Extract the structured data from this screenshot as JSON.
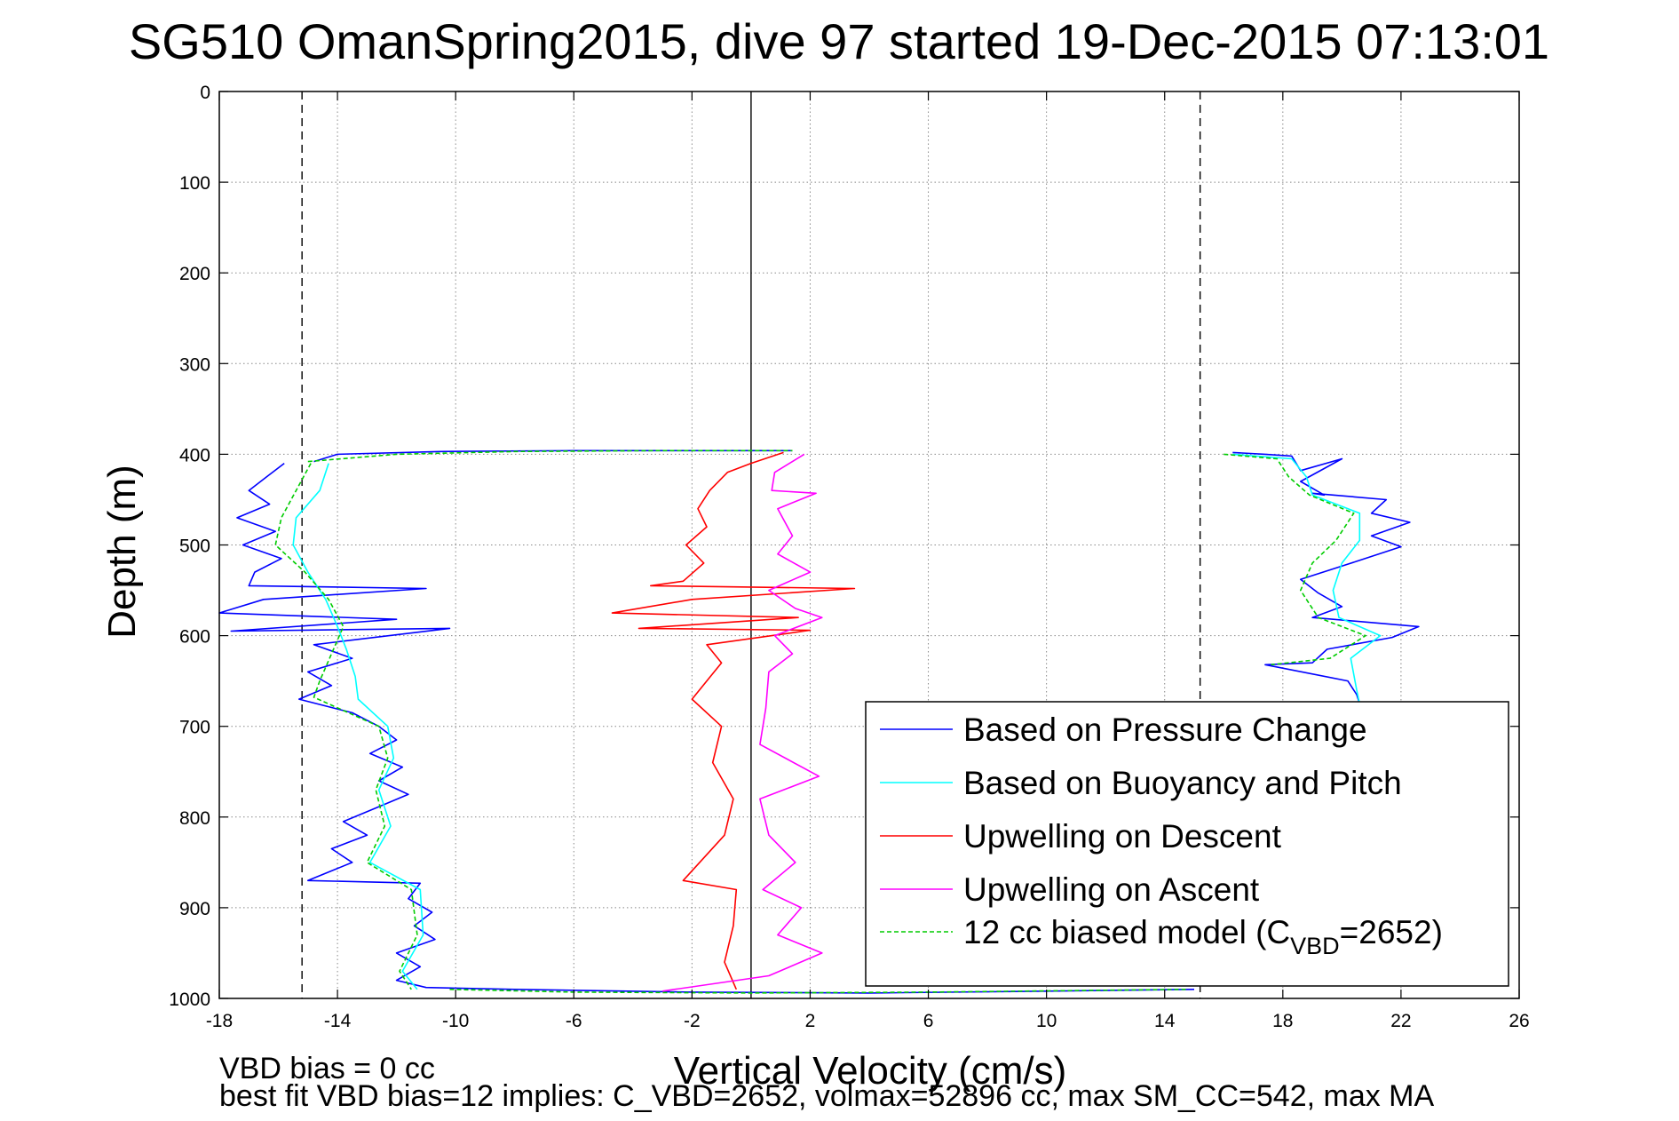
{
  "chart_data": {
    "type": "line",
    "title": "SG510 OmanSpring2015, dive 97 started 19-Dec-2015 07:13:01",
    "xlabel": "Vertical Velocity (cm/s)",
    "ylabel": "Depth (m)",
    "xlim": [
      -18,
      26
    ],
    "ylim": [
      0,
      1000
    ],
    "y_reversed": true,
    "grid": true,
    "xticks": [
      "-18",
      "-14",
      "-10",
      "-6",
      "-2",
      "2",
      "6",
      "10",
      "14",
      "18",
      "22",
      "26"
    ],
    "yticks": [
      "0",
      "100",
      "200",
      "300",
      "400",
      "500",
      "600",
      "700",
      "800",
      "900",
      "1000"
    ],
    "reference_lines": [
      {
        "x": -15.2,
        "style": "dashed"
      },
      {
        "x": 0,
        "style": "solid"
      },
      {
        "x": 15.2,
        "style": "dashed"
      }
    ],
    "series": [
      {
        "name": "Based on Pressure Change",
        "color": "#0000ff",
        "segments": [
          {
            "points": [
              [
                -15.8,
                410
              ],
              [
                -16.4,
                425
              ],
              [
                -17.0,
                440
              ],
              [
                -16.3,
                455
              ],
              [
                -17.4,
                470
              ],
              [
                -16.1,
                485
              ],
              [
                -17.2,
                500
              ],
              [
                -15.9,
                515
              ],
              [
                -16.8,
                530
              ],
              [
                -17.0,
                545
              ],
              [
                -11.0,
                548
              ],
              [
                -16.5,
                560
              ],
              [
                -18.0,
                575
              ],
              [
                -12.0,
                582
              ],
              [
                -17.6,
                595
              ],
              [
                -10.2,
                592
              ],
              [
                -14.8,
                610
              ],
              [
                -13.5,
                625
              ],
              [
                -15.0,
                640
              ],
              [
                -14.2,
                655
              ],
              [
                -15.3,
                670
              ],
              [
                -13.5,
                685
              ],
              [
                -12.6,
                700
              ],
              [
                -12.0,
                715
              ],
              [
                -12.9,
                730
              ],
              [
                -11.8,
                745
              ],
              [
                -12.6,
                760
              ],
              [
                -11.6,
                775
              ],
              [
                -12.7,
                790
              ],
              [
                -13.8,
                805
              ],
              [
                -13.0,
                820
              ],
              [
                -14.2,
                835
              ],
              [
                -13.5,
                850
              ],
              [
                -15.0,
                870
              ],
              [
                -11.2,
                873
              ],
              [
                -11.6,
                890
              ],
              [
                -10.8,
                905
              ],
              [
                -11.4,
                920
              ],
              [
                -10.7,
                935
              ],
              [
                -12.0,
                950
              ],
              [
                -11.2,
                965
              ],
              [
                -12.0,
                980
              ],
              [
                -11.0,
                988
              ],
              [
                -8.0,
                990
              ],
              [
                -2.0,
                993
              ],
              [
                4.0,
                994
              ],
              [
                10.0,
                992
              ],
              [
                15.0,
                990
              ]
            ]
          },
          {
            "points": [
              [
                16.3,
                398
              ],
              [
                17.4,
                400
              ],
              [
                18.3,
                402
              ],
              [
                18.6,
                418
              ],
              [
                20.0,
                405
              ],
              [
                18.6,
                430
              ],
              [
                19.4,
                445
              ],
              [
                19.0,
                443
              ],
              [
                21.5,
                450
              ],
              [
                21.0,
                465
              ],
              [
                22.3,
                475
              ],
              [
                21.0,
                490
              ],
              [
                22.0,
                502
              ],
              [
                20.5,
                518
              ],
              [
                18.6,
                538
              ],
              [
                19.2,
                553
              ],
              [
                20.0,
                568
              ],
              [
                19.0,
                580
              ],
              [
                22.6,
                590
              ],
              [
                21.7,
                602
              ],
              [
                19.5,
                615
              ],
              [
                19.0,
                630
              ],
              [
                17.4,
                632
              ],
              [
                20.2,
                650
              ],
              [
                20.5,
                665
              ],
              [
                20.6,
                675
              ]
            ]
          },
          {
            "points": [
              [
                -14.8,
                408
              ],
              [
                -14.0,
                400
              ],
              [
                -10.5,
                397
              ],
              [
                -6.0,
                396
              ],
              [
                -2.0,
                396
              ],
              [
                1.4,
                396
              ]
            ]
          }
        ]
      },
      {
        "name": "Based on Buoyancy and Pitch",
        "color": "#00ffff",
        "segments": [
          {
            "points": [
              [
                -14.3,
                410
              ],
              [
                -14.6,
                440
              ],
              [
                -15.4,
                470
              ],
              [
                -15.5,
                500
              ],
              [
                -15.0,
                530
              ],
              [
                -14.4,
                560
              ],
              [
                -14.0,
                590
              ],
              [
                -13.7,
                615
              ],
              [
                -13.4,
                645
              ],
              [
                -13.3,
                670
              ],
              [
                -12.3,
                700
              ],
              [
                -12.1,
                735
              ],
              [
                -12.6,
                770
              ],
              [
                -12.2,
                810
              ],
              [
                -12.9,
                850
              ],
              [
                -11.2,
                880
              ],
              [
                -11.1,
                930
              ],
              [
                -11.8,
                970
              ],
              [
                -11.3,
                990
              ]
            ]
          },
          {
            "points": [
              [
                16.3,
                400
              ],
              [
                18.3,
                405
              ],
              [
                18.8,
                425
              ],
              [
                19.0,
                445
              ],
              [
                20.6,
                465
              ],
              [
                20.6,
                495
              ],
              [
                20.0,
                520
              ],
              [
                19.7,
                550
              ],
              [
                19.9,
                580
              ],
              [
                21.3,
                600
              ],
              [
                20.3,
                625
              ],
              [
                20.5,
                660
              ],
              [
                20.6,
                675
              ]
            ]
          }
        ]
      },
      {
        "name": "Upwelling on Descent",
        "color": "#ff0000",
        "segments": [
          {
            "points": [
              [
                1.1,
                398
              ],
              [
                0.0,
                410
              ],
              [
                -0.8,
                420
              ],
              [
                -1.4,
                440
              ],
              [
                -1.8,
                460
              ],
              [
                -1.5,
                480
              ],
              [
                -2.2,
                500
              ],
              [
                -1.6,
                520
              ],
              [
                -2.3,
                540
              ],
              [
                -3.4,
                545
              ],
              [
                3.5,
                548
              ],
              [
                -2.0,
                560
              ],
              [
                -4.7,
                575
              ],
              [
                1.6,
                580
              ],
              [
                -3.8,
                592
              ],
              [
                2.0,
                594
              ],
              [
                -1.5,
                610
              ],
              [
                -1.0,
                630
              ],
              [
                -2.0,
                670
              ],
              [
                -1.0,
                700
              ],
              [
                -1.3,
                740
              ],
              [
                -0.6,
                780
              ],
              [
                -0.9,
                820
              ],
              [
                -2.3,
                870
              ],
              [
                -0.5,
                880
              ],
              [
                -0.6,
                920
              ],
              [
                -0.9,
                960
              ],
              [
                -0.5,
                990
              ]
            ]
          }
        ]
      },
      {
        "name": "Upwelling on Ascent",
        "color": "#ff00ff",
        "segments": [
          {
            "points": [
              [
                1.8,
                400
              ],
              [
                0.8,
                420
              ],
              [
                0.7,
                440
              ],
              [
                2.2,
                443
              ],
              [
                0.9,
                460
              ],
              [
                1.4,
                490
              ],
              [
                0.9,
                510
              ],
              [
                2.0,
                530
              ],
              [
                0.6,
                550
              ],
              [
                1.5,
                570
              ],
              [
                2.4,
                580
              ],
              [
                0.8,
                600
              ],
              [
                1.4,
                620
              ],
              [
                0.6,
                640
              ],
              [
                0.5,
                680
              ],
              [
                0.3,
                720
              ],
              [
                2.3,
                755
              ],
              [
                0.3,
                780
              ],
              [
                0.6,
                820
              ],
              [
                1.5,
                850
              ],
              [
                0.4,
                880
              ],
              [
                1.7,
                900
              ],
              [
                0.9,
                930
              ],
              [
                2.4,
                950
              ],
              [
                0.6,
                975
              ],
              [
                -3.0,
                992
              ]
            ]
          }
        ]
      },
      {
        "name": "12 cc biased model (C",
        "name_sub": "VBD",
        "name_suffix": "=2652)",
        "color": "#00cc00",
        "dashed": true,
        "segments": [
          {
            "points": [
              [
                -14.9,
                410
              ],
              [
                -15.4,
                440
              ],
              [
                -15.9,
                470
              ],
              [
                -16.1,
                500
              ],
              [
                -15.1,
                530
              ],
              [
                -14.3,
                560
              ],
              [
                -13.8,
                590
              ],
              [
                -14.2,
                620
              ],
              [
                -14.6,
                650
              ],
              [
                -14.8,
                668
              ],
              [
                -12.6,
                700
              ],
              [
                -12.3,
                735
              ],
              [
                -12.7,
                770
              ],
              [
                -12.4,
                810
              ],
              [
                -13.0,
                850
              ],
              [
                -11.5,
                880
              ],
              [
                -11.3,
                930
              ],
              [
                -11.9,
                970
              ],
              [
                -11.5,
                990
              ]
            ]
          },
          {
            "points": [
              [
                16.0,
                400
              ],
              [
                17.8,
                405
              ],
              [
                18.2,
                425
              ],
              [
                18.9,
                445
              ],
              [
                20.4,
                465
              ],
              [
                19.8,
                495
              ],
              [
                19.0,
                520
              ],
              [
                18.6,
                550
              ],
              [
                19.2,
                580
              ],
              [
                20.8,
                600
              ],
              [
                19.6,
                625
              ],
              [
                17.6,
                632
              ]
            ]
          },
          {
            "points": [
              [
                -15.0,
                408
              ],
              [
                -12.0,
                400
              ],
              [
                -8.0,
                397
              ],
              [
                -3.0,
                396
              ],
              [
                1.4,
                396
              ]
            ]
          },
          {
            "points": [
              [
                -10.2,
                990
              ],
              [
                -6.0,
                993
              ],
              [
                0.0,
                994
              ],
              [
                6.0,
                993
              ],
              [
                14.8,
                990
              ]
            ]
          }
        ]
      }
    ],
    "legend": "bottom-right"
  },
  "footer": {
    "line1": "VBD bias = 0 cc",
    "line2": "best fit VBD bias=12 implies: C_VBD=2652, volmax=52896 cc, max SM_CC=542, max MA"
  }
}
